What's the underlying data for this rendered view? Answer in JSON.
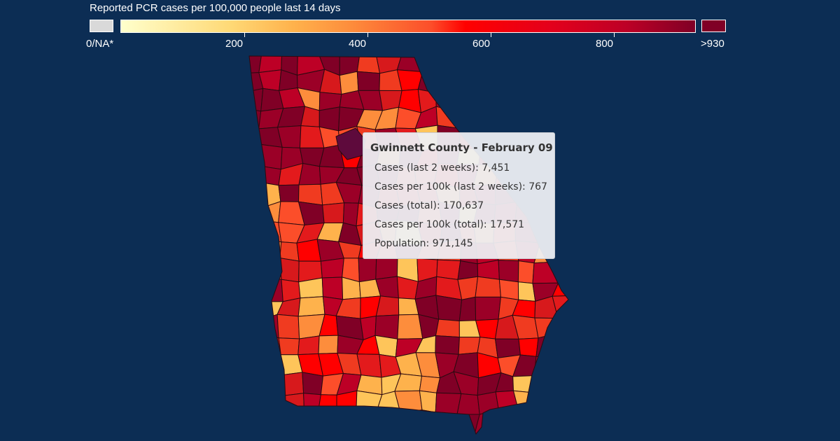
{
  "legend": {
    "title": "Reported PCR cases per 100,000 people last 14 days",
    "na_label": "0/NA*",
    "max_label": ">930",
    "ticks": [
      "200",
      "400",
      "600",
      "800"
    ],
    "colors": {
      "na": "#d9d9d9",
      "low": "#ffffcc",
      "high": "#800026",
      "background": "#0c2d54"
    }
  },
  "map": {
    "region": "Georgia counties",
    "highlighted": "Gwinnett County",
    "highlight_color": "#5e0a3c"
  },
  "tooltip": {
    "title": "Gwinnett County - February 09",
    "rows": [
      "Cases (last 2 weeks): 7,451",
      "Cases per 100k (last 2 weeks): 767",
      "Cases (total): 170,637",
      "Cases per 100k (total): 17,571",
      "Population: 971,145"
    ]
  }
}
